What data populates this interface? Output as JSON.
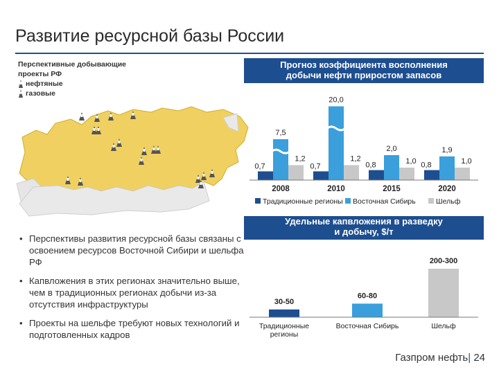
{
  "title": "Развитие ресурсной базы России",
  "map": {
    "heading_line1": "Перспективные добывающие",
    "heading_line2": "проекты РФ",
    "legend": [
      {
        "label": "нефтяные",
        "icon": "oil-derrick-icon"
      },
      {
        "label": "газовые",
        "icon": "gas-derrick-icon"
      }
    ]
  },
  "banner1": {
    "line1": "Прогноз коэффициента восполнения",
    "line2": "добычи нефти приростом запасов"
  },
  "banner2": {
    "line1": "Удельные капвложения в разведку",
    "line2": "и добычу, $/т"
  },
  "chart_data": [
    {
      "type": "bar",
      "title": "Прогноз коэффициента восполнения добычи нефти приростом запасов",
      "categories": [
        "2008",
        "2010",
        "2015",
        "2020"
      ],
      "series": [
        {
          "name": "Традиционные регионы",
          "color": "#1d4e8f",
          "values": [
            0.7,
            0.7,
            0.8,
            0.8
          ],
          "labels": [
            "0,7",
            "0,7",
            "0,8",
            "0,8"
          ]
        },
        {
          "name": "Восточная Сибирь",
          "color": "#3a9fdb",
          "values": [
            7.5,
            20.0,
            2.0,
            1.9
          ],
          "labels": [
            "7,5",
            "20,0",
            "2,0",
            "1,9"
          ]
        },
        {
          "name": "Шельф",
          "color": "#c8c8c8",
          "values": [
            1.2,
            1.2,
            1.0,
            1.0
          ],
          "labels": [
            "1,2",
            "1,2",
            "1,0",
            "1,0"
          ]
        }
      ],
      "broken_axis": true,
      "legend_position": "bottom"
    },
    {
      "type": "bar",
      "title": "Удельные капвложения в разведку и добычу, $/т",
      "categories": [
        "Традиционные регионы",
        "Восточная Сибирь",
        "Шельф"
      ],
      "values": [
        40,
        70,
        250
      ],
      "labels": [
        "30-50",
        "60-80",
        "200-300"
      ],
      "colors": [
        "#1d4e8f",
        "#3a9fdb",
        "#c8c8c8"
      ]
    }
  ],
  "bullets": [
    "Перспективы развития ресурсной базы связаны с освоением ресурсов Восточной Сибири и шельфа РФ",
    "Капвложения в этих регионах значительно выше, чем в традиционных регионах добычи из-за отсутствия инфраструктуры",
    "Проекты на шельфе требуют новых технологий и подготовленных кадров"
  ],
  "footer": {
    "company": "Газпром нефть",
    "page": "24"
  }
}
